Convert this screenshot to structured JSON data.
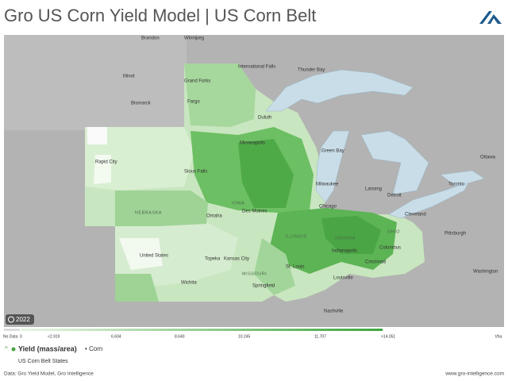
{
  "header": {
    "title": "Gro US Corn Yield Model | US Corn Belt"
  },
  "map": {
    "year_badge": "2022",
    "places": [
      "Brandon",
      "Winnipeg",
      "Minot",
      "Bismarck",
      "Grand Forks",
      "Fargo",
      "International Falls",
      "Thunder Bay",
      "Duluth",
      "Rapid City",
      "Sioux Falls",
      "Minneapolis",
      "Green Bay",
      "Milwaukee",
      "Des Moines",
      "Omaha",
      "Chicago",
      "Lansing",
      "Detroit",
      "Toronto",
      "Ottawa",
      "Cleveland",
      "Pittsburgh",
      "Columbus",
      "Indianapolis",
      "Cincinnati",
      "Topeka",
      "Kansas City",
      "St. Louis",
      "Louisville",
      "Springfield",
      "Wichita",
      "Nashville",
      "Washington",
      "United States",
      "NEBRASKA",
      "IOWA",
      "ILLINOIS",
      "INDIANA",
      "OHIO",
      "MISSOURI"
    ]
  },
  "legend": {
    "labels": [
      "No Data",
      "0",
      "<2.919",
      "6.604",
      "8.640",
      "10.245",
      "11.707",
      ">14.051"
    ],
    "unit": "t/ha"
  },
  "layer": {
    "metric": "Yield (mass/area)",
    "item": "• Corn",
    "region": "US Corn Belt States"
  },
  "footer": {
    "source": "Data: Gro Yield Model, Gro Intelligence",
    "url": "www.gro-intelligence.com"
  }
}
